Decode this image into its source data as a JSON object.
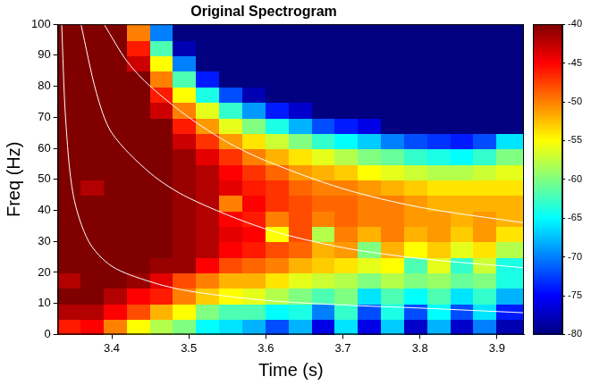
{
  "chart_data": {
    "type": "heatmap",
    "title": "Original Spectrogram",
    "x_label": "Time (s)",
    "y_label": "Freq (Hz)",
    "xlim": [
      3.33,
      3.935
    ],
    "xticks": [
      3.4,
      3.5,
      3.6,
      3.7,
      3.8,
      3.9
    ],
    "ylim": [
      0,
      100
    ],
    "yticks": [
      0,
      10,
      20,
      30,
      40,
      50,
      60,
      70,
      80,
      90,
      100
    ],
    "grid": false,
    "x": [
      3.345,
      3.375,
      3.405,
      3.435,
      3.465,
      3.495,
      3.525,
      3.555,
      3.585,
      3.615,
      3.645,
      3.675,
      3.705,
      3.735,
      3.765,
      3.795,
      3.825,
      3.855,
      3.885,
      3.915
    ],
    "y": [
      2.5,
      7.5,
      12.5,
      17.5,
      22.5,
      27.5,
      32.5,
      37.5,
      42.5,
      47.5,
      52.5,
      57.5,
      62.5,
      67.5,
      72.5,
      77.5,
      82.5,
      87.5,
      92.5,
      97.5
    ],
    "cells": [
      [
        -46,
        -45,
        -50,
        -55,
        -58,
        -60,
        -65,
        -66,
        -68,
        -72,
        -68,
        -76,
        -66,
        -76,
        -67,
        -77,
        -68,
        -77,
        -70,
        -78
      ],
      [
        -42,
        -42,
        -45,
        -48,
        -52,
        -55,
        -60,
        -62,
        -62,
        -65,
        -64,
        -70,
        -63,
        -72,
        -64,
        -72,
        -65,
        -72,
        -66,
        -74
      ],
      [
        -40,
        -40,
        -42,
        -45,
        -46,
        -50,
        -53,
        -55,
        -56,
        -58,
        -60,
        -62,
        -60,
        -66,
        -62,
        -65,
        -62,
        -66,
        -63,
        -68
      ],
      [
        -42,
        -40,
        -40,
        -41,
        -44,
        -48,
        -50,
        -52,
        -52,
        -54,
        -56,
        -57,
        -58,
        -60,
        -58,
        -60,
        -59,
        -61,
        -60,
        -64
      ],
      [
        -40,
        -40,
        -40,
        -40,
        -41,
        -41,
        -45,
        -48,
        -49,
        -50,
        -52,
        -53,
        -54,
        -56,
        -55,
        -62,
        -56,
        -63,
        -57,
        -64
      ],
      [
        -40,
        -40,
        -40,
        -40,
        -40,
        -41,
        -42,
        -45,
        -46,
        -48,
        -49,
        -52,
        -51,
        -60,
        -52,
        -55,
        -53,
        -56,
        -54,
        -58
      ],
      [
        -40,
        -40,
        -40,
        -40,
        -40,
        -41,
        -42,
        -44,
        -45,
        -55,
        -48,
        -58,
        -50,
        -52,
        -50,
        -52,
        -51,
        -53,
        -51,
        -54
      ],
      [
        -40,
        -40,
        -40,
        -40,
        -40,
        -41,
        -42,
        -45,
        -46,
        -50,
        -48,
        -50,
        -49,
        -50,
        -50,
        -51,
        -51,
        -52,
        -51,
        -52
      ],
      [
        -40,
        -40,
        -40,
        -40,
        -40,
        -41,
        -42,
        -50,
        -45,
        -47,
        -48,
        -49,
        -49,
        -50,
        -50,
        -51,
        -52,
        -52,
        -52,
        -52
      ],
      [
        -40,
        -42,
        -40,
        -40,
        -40,
        -41,
        -42,
        -44,
        -46,
        -47,
        -49,
        -50,
        -50,
        -51,
        -52,
        -53,
        -54,
        -54,
        -54,
        -54
      ],
      [
        -40,
        -40,
        -40,
        -40,
        -40,
        -41,
        -42,
        -45,
        -47,
        -49,
        -51,
        -52,
        -53,
        -55,
        -56,
        -57,
        -58,
        -58,
        -57,
        -56
      ],
      [
        -40,
        -40,
        -40,
        -40,
        -40,
        -41,
        -44,
        -47,
        -50,
        -52,
        -54,
        -56,
        -58,
        -60,
        -61,
        -63,
        -64,
        -65,
        -63,
        -60
      ],
      [
        -40,
        -40,
        -40,
        -40,
        -40,
        -43,
        -47,
        -51,
        -54,
        -57,
        -60,
        -63,
        -65,
        -67,
        -70,
        -72,
        -73,
        -74,
        -72,
        -66
      ],
      [
        -40,
        -40,
        -40,
        -40,
        -40,
        -46,
        -51,
        -56,
        -60,
        -64,
        -68,
        -72,
        -74,
        -76,
        -80,
        -80,
        -80,
        -80,
        -80,
        -80
      ],
      [
        -40,
        -40,
        -40,
        -40,
        -43,
        -50,
        -56,
        -63,
        -69,
        -74,
        -77,
        -80,
        -80,
        -80,
        -80,
        -80,
        -80,
        -80,
        -80,
        -80
      ],
      [
        -40,
        -40,
        -40,
        -40,
        -46,
        -55,
        -64,
        -72,
        -78,
        -80,
        -80,
        -80,
        -80,
        -80,
        -80,
        -80,
        -80,
        -80,
        -80,
        -80
      ],
      [
        -40,
        -40,
        -40,
        -40,
        -50,
        -62,
        -74,
        -80,
        -80,
        -80,
        -80,
        -80,
        -80,
        -80,
        -80,
        -80,
        -80,
        -80,
        -80,
        -80
      ],
      [
        -40,
        -40,
        -40,
        -43,
        -55,
        -70,
        -80,
        -80,
        -80,
        -80,
        -80,
        -80,
        -80,
        -80,
        -80,
        -80,
        -80,
        -80,
        -80,
        -80
      ],
      [
        -40,
        -40,
        -40,
        -46,
        -62,
        -78,
        -80,
        -80,
        -80,
        -80,
        -80,
        -80,
        -80,
        -80,
        -80,
        -80,
        -80,
        -80,
        -80,
        -80
      ],
      [
        -40,
        -40,
        -40,
        -50,
        -70,
        -80,
        -80,
        -80,
        -80,
        -80,
        -80,
        -80,
        -80,
        -80,
        -80,
        -80,
        -80,
        -80,
        -80,
        -80
      ]
    ],
    "colorbar": {
      "range": [
        -80,
        -40
      ],
      "ticks": [
        -40,
        -45,
        -50,
        -55,
        -60,
        -65,
        -70,
        -75,
        -80
      ]
    },
    "series": [
      {
        "type": "line",
        "color": "#ffffff",
        "line_style": "solid",
        "x": [
          3.335,
          3.34,
          3.35,
          3.37,
          3.4,
          3.45,
          3.5,
          3.6,
          3.7,
          3.8,
          3.935
        ],
        "values": [
          100,
          70,
          45,
          30,
          22,
          17,
          14,
          11,
          9.5,
          8.5,
          7
        ]
      },
      {
        "type": "line",
        "color": "#ffffff",
        "line_style": "solid",
        "x": [
          3.36,
          3.38,
          3.4,
          3.45,
          3.5,
          3.6,
          3.7,
          3.8,
          3.935
        ],
        "values": [
          100,
          78,
          65,
          52,
          44,
          34,
          28,
          24.5,
          21.5
        ]
      },
      {
        "type": "line",
        "color": "#ffffff",
        "line_style": "solid",
        "x": [
          3.39,
          3.42,
          3.45,
          3.5,
          3.55,
          3.6,
          3.7,
          3.8,
          3.935
        ],
        "values": [
          100,
          88,
          80,
          70,
          62,
          56,
          47,
          41,
          36
        ]
      }
    ]
  }
}
